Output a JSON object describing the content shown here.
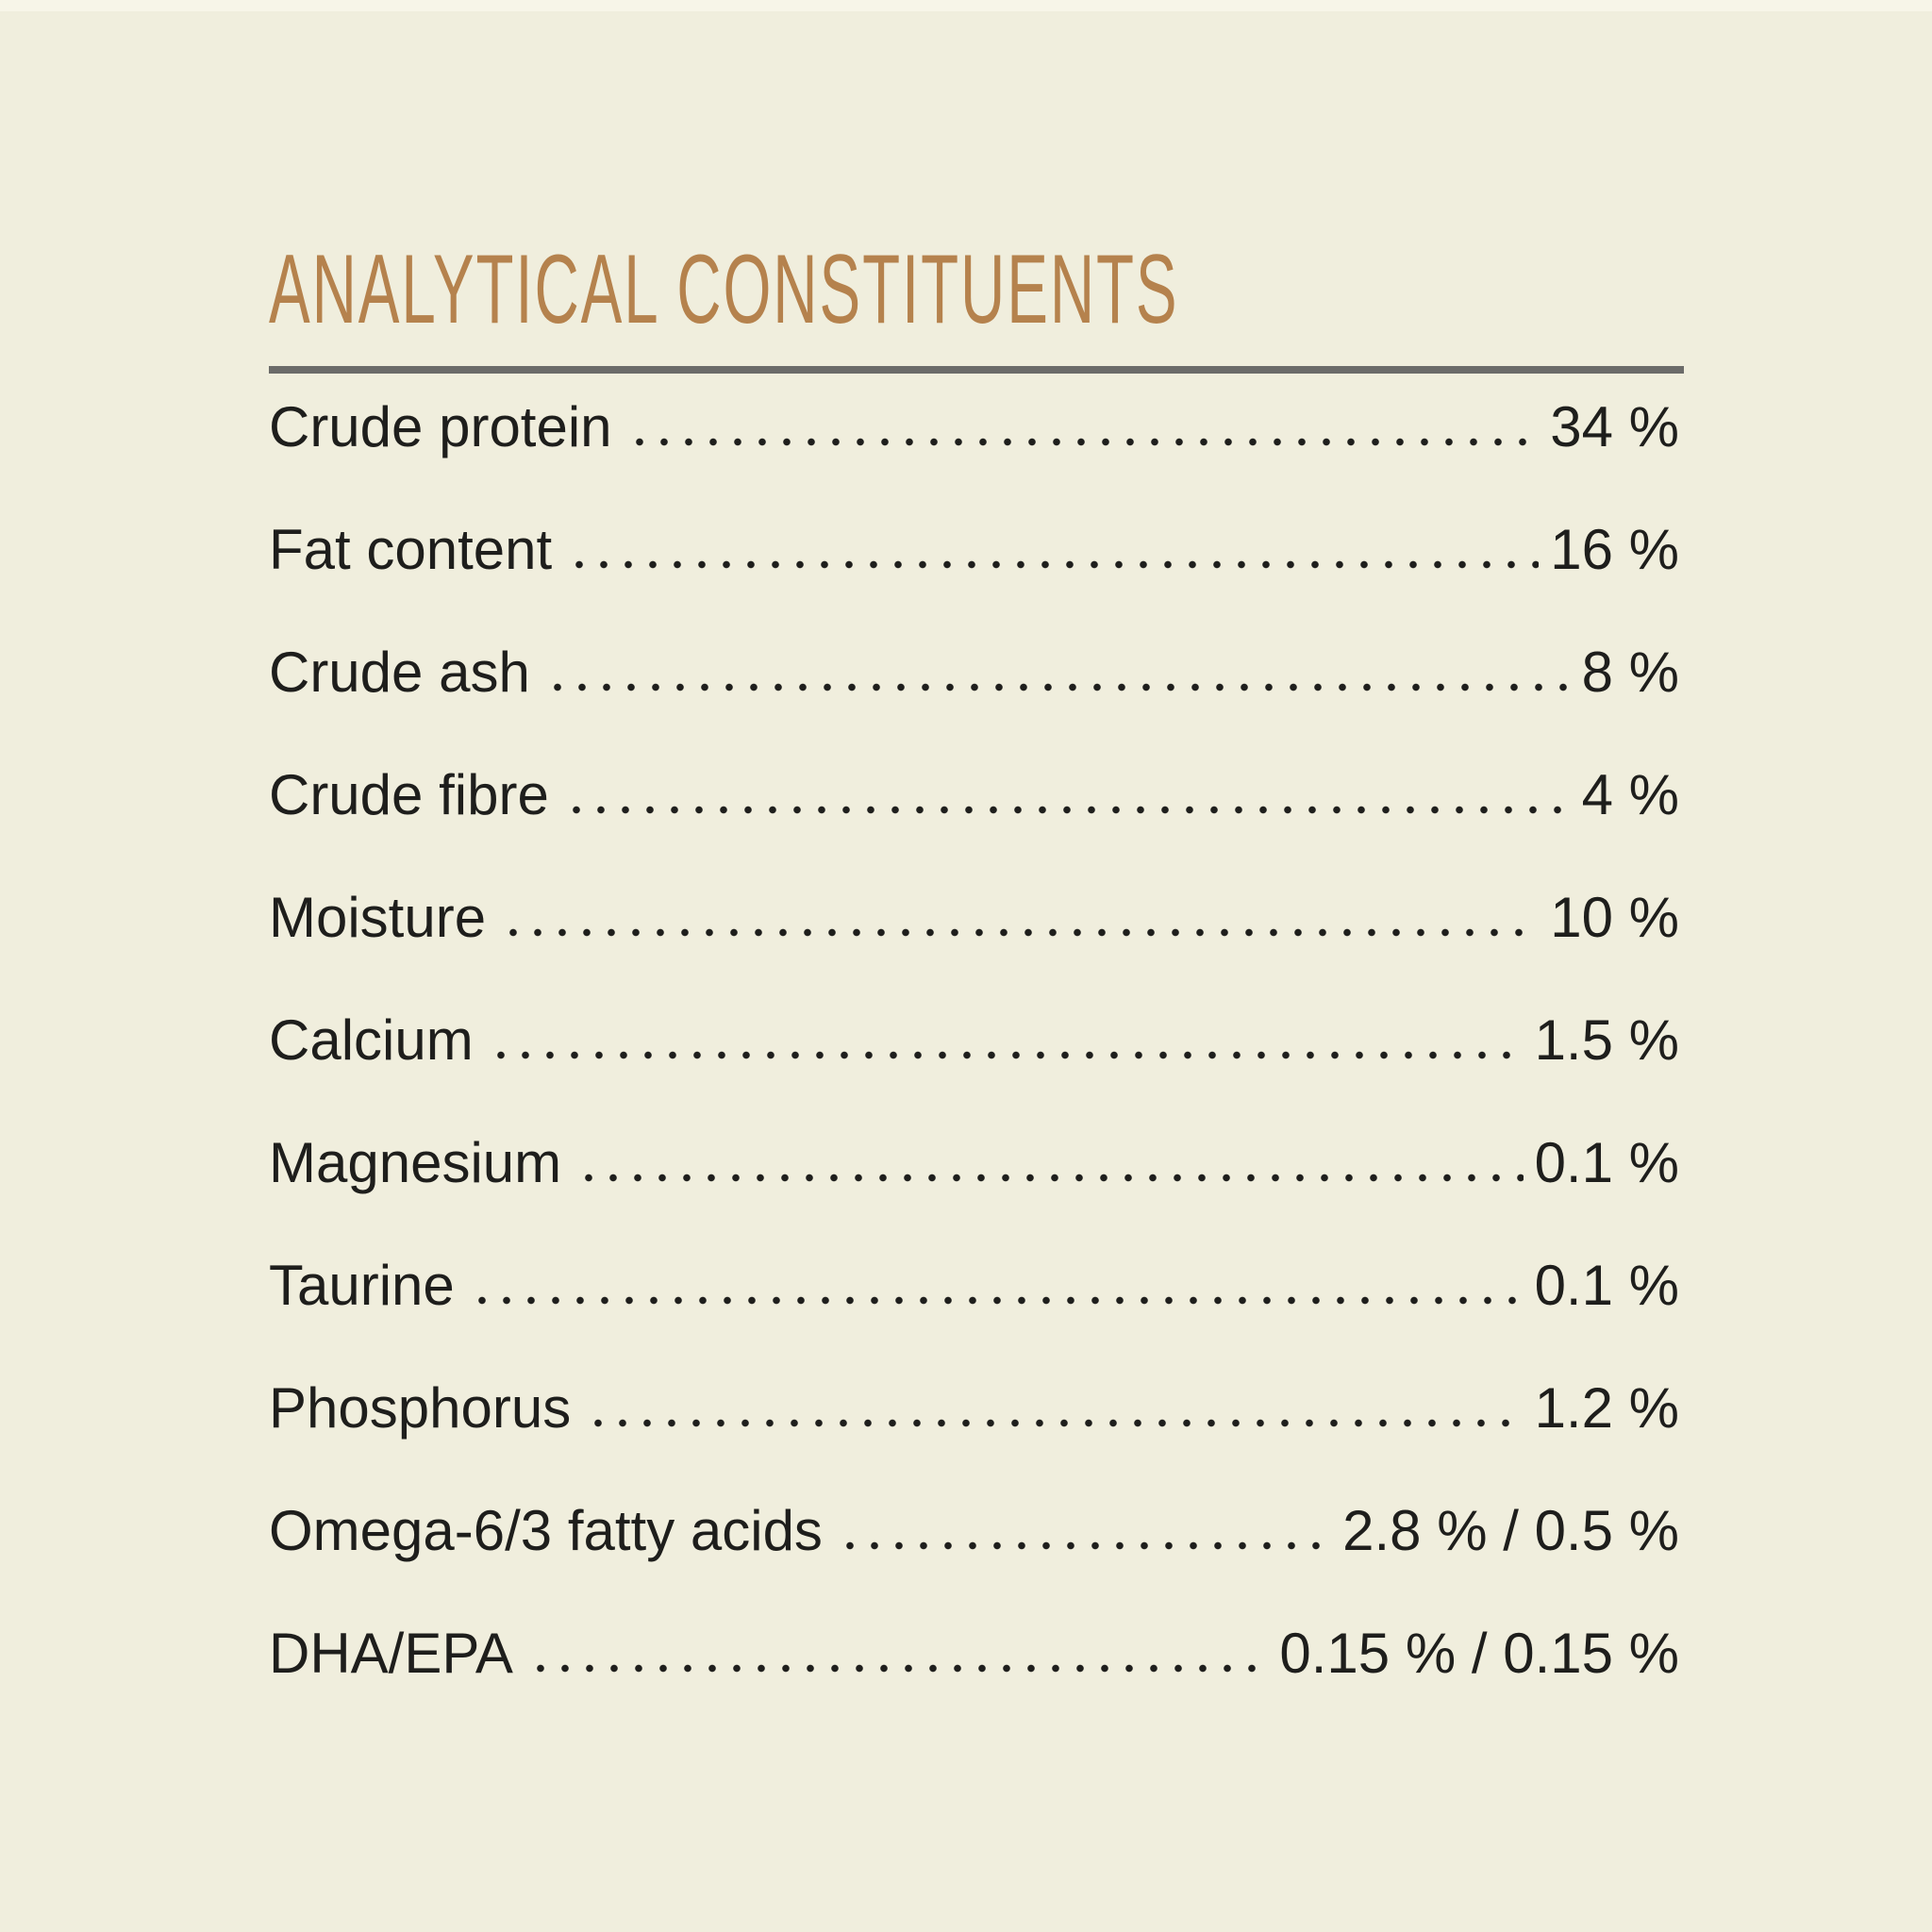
{
  "panel": {
    "title": "ANALYTICAL CONSTITUENTS",
    "rows": [
      {
        "label": "Crude protein",
        "value": "34 %"
      },
      {
        "label": "Fat content",
        "value": "16 %"
      },
      {
        "label": "Crude ash",
        "value": "8 %"
      },
      {
        "label": "Crude fibre",
        "value": "4 %"
      },
      {
        "label": "Moisture",
        "value": "10 %"
      },
      {
        "label": "Calcium",
        "value": "1.5 %"
      },
      {
        "label": "Magnesium",
        "value": "0.1 %"
      },
      {
        "label": "Taurine",
        "value": "0.1 %"
      },
      {
        "label": "Phosphorus",
        "value": "1.2 %"
      },
      {
        "label": "Omega-6/3 fatty acids",
        "value": "2.8 % / 0.5 %"
      },
      {
        "label": "DHA/EPA",
        "value": "0.15 % / 0.15 %"
      }
    ],
    "colors": {
      "bg": "#f0eedd",
      "bg-top": "#f7f5e8",
      "ink": "#1e1e1c",
      "title": "#b5824d",
      "rule": "#6b6b69"
    }
  }
}
